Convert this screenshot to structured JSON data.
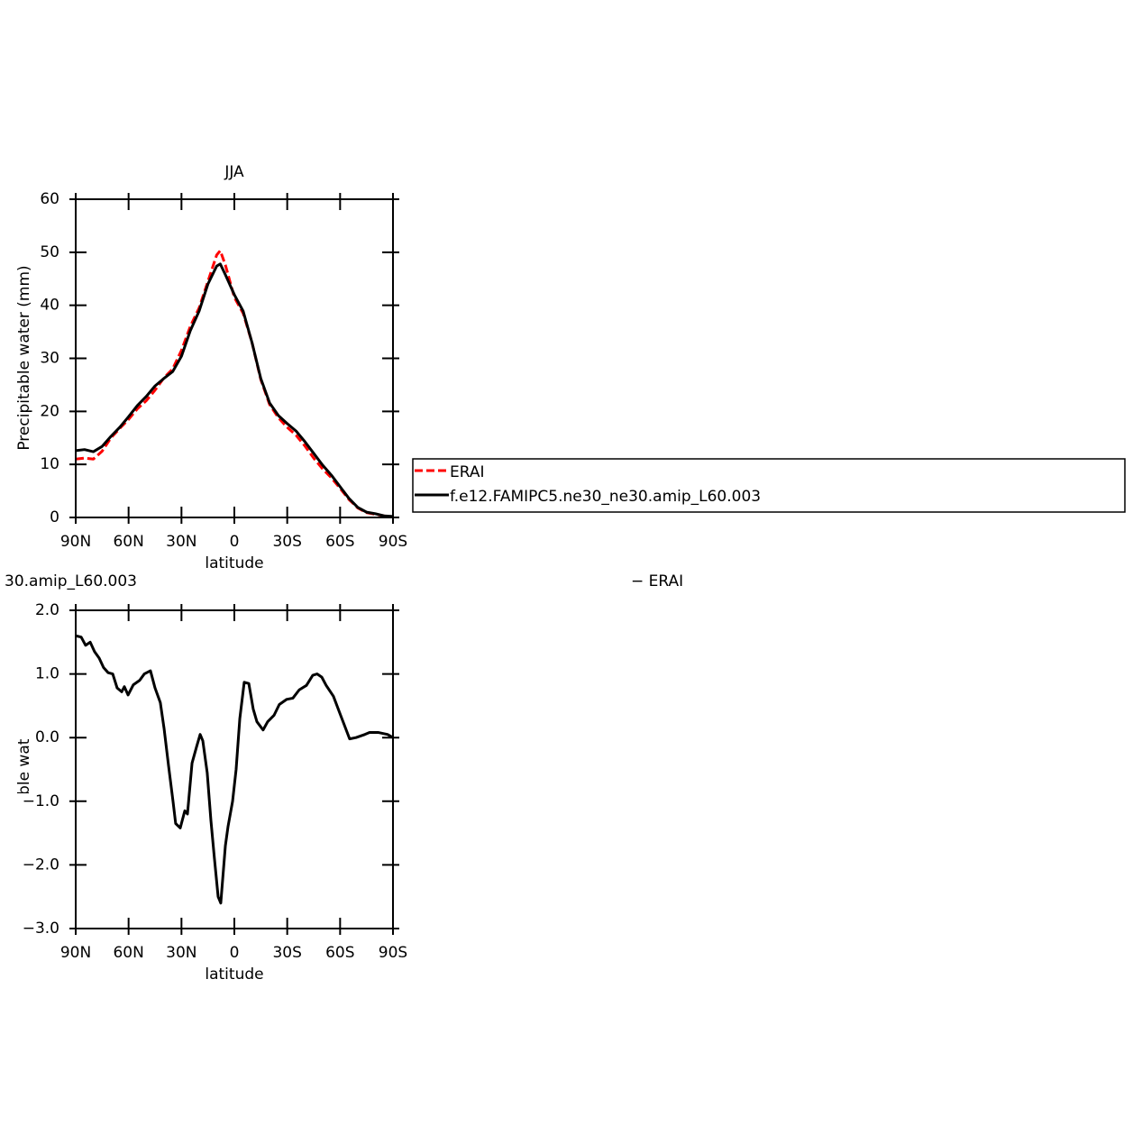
{
  "chart_data": [
    {
      "type": "line",
      "title": "JJA",
      "xlabel": "latitude",
      "ylabel": "Precipitable water (mm)",
      "xlim": [
        90,
        -90
      ],
      "ylim": [
        0,
        60
      ],
      "xticks": [
        {
          "value": 90,
          "label": "90N"
        },
        {
          "value": 60,
          "label": "60N"
        },
        {
          "value": 30,
          "label": "30N"
        },
        0,
        {
          "value": -30,
          "label": "30S"
        },
        {
          "value": -60,
          "label": "60S"
        },
        {
          "value": -90,
          "label": "90S"
        }
      ],
      "yticks": [
        0,
        10,
        20,
        30,
        40,
        50,
        60
      ],
      "legend": "right",
      "x": [
        90,
        85,
        80,
        75,
        70,
        65,
        60,
        55,
        50,
        45,
        40,
        35,
        30,
        25,
        20,
        15,
        10,
        8,
        5,
        0,
        -5,
        -10,
        -15,
        -20,
        -25,
        -30,
        -35,
        -40,
        -45,
        -50,
        -55,
        -60,
        -65,
        -70,
        -75,
        -80,
        -85,
        -90
      ],
      "series": [
        {
          "name": "ERAI",
          "color": "#ff0000",
          "dashed": true,
          "values": [
            11.0,
            11.2,
            11.0,
            12.5,
            15.0,
            16.8,
            18.5,
            20.5,
            22.0,
            24.0,
            26.3,
            28.0,
            31.5,
            36.0,
            39.5,
            44.5,
            49.5,
            50.3,
            47.5,
            41.5,
            38.5,
            33.0,
            26.0,
            21.3,
            18.8,
            17.0,
            15.5,
            13.5,
            11.2,
            9.2,
            7.5,
            5.5,
            3.4,
            1.8,
            0.9,
            0.6,
            0.3,
            0.1
          ]
        },
        {
          "name": "f.e12.FAMIPC5.ne30_ne30.amip_L60.003",
          "color": "#000000",
          "dashed": false,
          "values": [
            12.6,
            12.8,
            12.4,
            13.4,
            15.3,
            17.0,
            19.0,
            21.1,
            22.8,
            24.8,
            26.2,
            27.5,
            30.4,
            35.2,
            38.9,
            44.0,
            47.4,
            47.8,
            45.7,
            42.0,
            38.9,
            33.0,
            26.2,
            21.6,
            19.2,
            17.7,
            16.3,
            14.3,
            12.1,
            9.9,
            8.0,
            5.8,
            3.6,
            1.9,
            1.0,
            0.7,
            0.3,
            0.2
          ]
        }
      ]
    },
    {
      "type": "line",
      "title": "30.amip_L60.003",
      "title_right": "− ERAI",
      "xlabel": "latitude",
      "ylabel": "Precipitable water (mm)",
      "xlim": [
        90,
        -90
      ],
      "ylim": [
        -3,
        2
      ],
      "xticks": [
        {
          "value": 90,
          "label": "90N"
        },
        {
          "value": 60,
          "label": "60N"
        },
        {
          "value": 30,
          "label": "30N"
        },
        0,
        {
          "value": -30,
          "label": "30S"
        },
        {
          "value": -60,
          "label": "60S"
        },
        {
          "value": -90,
          "label": "90S"
        }
      ],
      "yticks": [
        {
          "value": -3,
          "label": "−3.0"
        },
        {
          "value": -2,
          "label": "−2.0"
        },
        {
          "value": -1,
          "label": "−1.0"
        },
        {
          "value": 0,
          "label": "0.0"
        },
        {
          "value": 1,
          "label": "1.0"
        },
        {
          "value": 2,
          "label": "2.0"
        }
      ],
      "x": [
        90,
        86.9,
        84.4,
        81.8,
        79.3,
        76.7,
        74.2,
        71.6,
        69.0,
        66.5,
        63.9,
        62.4,
        60.3,
        57.3,
        53.7,
        51.1,
        47.6,
        45.0,
        42.0,
        39.9,
        37.3,
        34.8,
        33.3,
        30.7,
        28.1,
        26.6,
        24.0,
        21.5,
        19.4,
        17.9,
        15.4,
        13.3,
        11.3,
        9.2,
        7.7,
        5.1,
        3.6,
        1.0,
        -1.0,
        -3.1,
        -5.6,
        -8.2,
        -10.7,
        -12.8,
        -16.3,
        -18.9,
        -22.5,
        -25.5,
        -29.6,
        -33.2,
        -36.8,
        -40.9,
        -44.5,
        -47.0,
        -49.6,
        -52.1,
        -56.2,
        -60.3,
        -65.4,
        -69.0,
        -74.1,
        -76.7,
        -81.8,
        -86.9,
        -90
      ],
      "series": [
        {
          "color": "#000000",
          "dashed": false,
          "values": [
            1.6,
            1.58,
            1.45,
            1.5,
            1.35,
            1.25,
            1.1,
            1.02,
            1.0,
            0.78,
            0.72,
            0.8,
            0.67,
            0.83,
            0.9,
            1.0,
            1.05,
            0.78,
            0.55,
            0.15,
            -0.45,
            -1.0,
            -1.35,
            -1.42,
            -1.15,
            -1.2,
            -0.4,
            -0.15,
            0.05,
            -0.05,
            -0.55,
            -1.3,
            -1.9,
            -2.5,
            -2.6,
            -1.7,
            -1.4,
            -1.0,
            -0.5,
            0.3,
            0.87,
            0.85,
            0.45,
            0.25,
            0.12,
            0.25,
            0.35,
            0.52,
            0.6,
            0.62,
            0.75,
            0.82,
            0.98,
            1.0,
            0.95,
            0.82,
            0.65,
            0.35,
            -0.02,
            0.0,
            0.05,
            0.08,
            0.08,
            0.05,
            0.0
          ]
        }
      ]
    }
  ]
}
